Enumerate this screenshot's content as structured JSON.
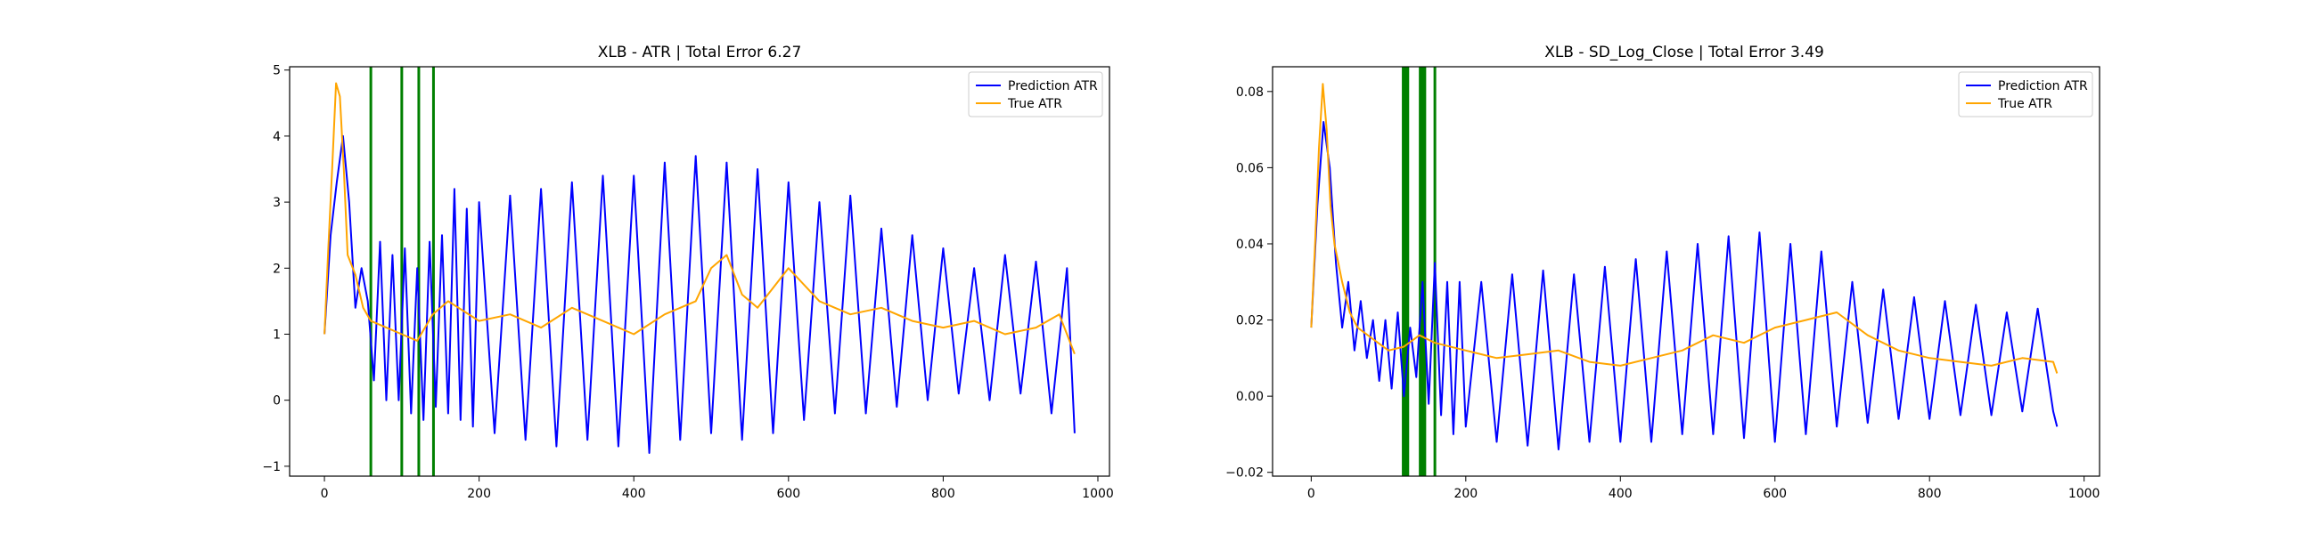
{
  "chart_data": [
    {
      "type": "line",
      "title": "XLB - ATR | Total Error 6.27",
      "xlabel": "",
      "ylabel": "",
      "xlim": [
        -45,
        1015
      ],
      "ylim": [
        -1.15,
        5.05
      ],
      "xticks": [
        0,
        200,
        400,
        600,
        800,
        1000
      ],
      "xtick_labels": [
        "0",
        "200",
        "400",
        "600",
        "800",
        "1000"
      ],
      "yticks": [
        -1,
        0,
        1,
        2,
        3,
        4,
        5
      ],
      "ytick_labels": [
        "−1",
        "0",
        "1",
        "2",
        "3",
        "4",
        "5"
      ],
      "grid": false,
      "legend_position": "top-right",
      "vertical_lines": [
        60,
        100,
        122,
        141
      ],
      "vertical_line_color": "#008000",
      "series": [
        {
          "name": "Prediction ATR",
          "color": "#0000ff",
          "x": [
            0,
            8,
            16,
            24,
            32,
            40,
            48,
            56,
            64,
            72,
            80,
            88,
            96,
            104,
            112,
            120,
            128,
            136,
            144,
            152,
            160,
            168,
            176,
            184,
            192,
            200,
            220,
            240,
            260,
            280,
            300,
            320,
            340,
            360,
            380,
            400,
            420,
            440,
            460,
            480,
            500,
            520,
            540,
            560,
            580,
            600,
            620,
            640,
            660,
            680,
            700,
            720,
            740,
            760,
            780,
            800,
            820,
            840,
            860,
            880,
            900,
            920,
            940,
            960,
            970
          ],
          "y": [
            1.0,
            2.5,
            3.3,
            4.0,
            3.0,
            1.4,
            2.0,
            1.5,
            0.3,
            2.4,
            0.0,
            2.2,
            0.0,
            2.3,
            -0.2,
            2.0,
            -0.3,
            2.4,
            -0.1,
            2.5,
            -0.2,
            3.2,
            -0.3,
            2.9,
            -0.4,
            3.0,
            -0.5,
            3.1,
            -0.6,
            3.2,
            -0.7,
            3.3,
            -0.6,
            3.4,
            -0.7,
            3.4,
            -0.8,
            3.6,
            -0.6,
            3.7,
            -0.5,
            3.6,
            -0.6,
            3.5,
            -0.5,
            3.3,
            -0.3,
            3.0,
            -0.2,
            3.1,
            -0.2,
            2.6,
            -0.1,
            2.5,
            0.0,
            2.3,
            0.1,
            2.0,
            0.0,
            2.2,
            0.1,
            2.1,
            -0.2,
            2.0,
            -0.5
          ]
        },
        {
          "name": "True ATR",
          "color": "#ffa500",
          "x": [
            0,
            5,
            10,
            15,
            20,
            25,
            30,
            40,
            50,
            60,
            80,
            100,
            120,
            140,
            160,
            200,
            240,
            280,
            320,
            360,
            400,
            440,
            480,
            500,
            520,
            540,
            560,
            580,
            600,
            640,
            680,
            720,
            760,
            800,
            840,
            880,
            920,
            950,
            970
          ],
          "y": [
            1.0,
            2.3,
            3.5,
            4.8,
            4.6,
            3.5,
            2.2,
            1.9,
            1.4,
            1.2,
            1.1,
            1.0,
            0.9,
            1.3,
            1.5,
            1.2,
            1.3,
            1.1,
            1.4,
            1.2,
            1.0,
            1.3,
            1.5,
            2.0,
            2.2,
            1.6,
            1.4,
            1.7,
            2.0,
            1.5,
            1.3,
            1.4,
            1.2,
            1.1,
            1.2,
            1.0,
            1.1,
            1.3,
            0.7
          ]
        }
      ]
    },
    {
      "type": "line",
      "title": "XLB - SD_Log_Close | Total Error 3.49",
      "xlabel": "",
      "ylabel": "",
      "xlim": [
        -50,
        1020
      ],
      "ylim": [
        -0.021,
        0.0865
      ],
      "xticks": [
        0,
        200,
        400,
        600,
        800,
        1000
      ],
      "xtick_labels": [
        "0",
        "200",
        "400",
        "600",
        "800",
        "1000"
      ],
      "yticks": [
        -0.02,
        0.0,
        0.02,
        0.04,
        0.06,
        0.08
      ],
      "ytick_labels": [
        "−0.02",
        "0.00",
        "0.02",
        "0.04",
        "0.06",
        "0.08"
      ],
      "grid": false,
      "legend_position": "top-right",
      "vertical_lines": [
        119,
        122,
        125,
        141,
        144,
        147,
        160
      ],
      "vertical_line_color": "#008000",
      "series": [
        {
          "name": "Prediction ATR",
          "color": "#0000ff",
          "x": [
            0,
            8,
            16,
            24,
            32,
            40,
            48,
            56,
            64,
            72,
            80,
            88,
            96,
            104,
            112,
            120,
            128,
            136,
            144,
            152,
            160,
            168,
            176,
            184,
            192,
            200,
            220,
            240,
            260,
            280,
            300,
            320,
            340,
            360,
            380,
            400,
            420,
            440,
            460,
            480,
            500,
            520,
            540,
            560,
            580,
            600,
            620,
            640,
            660,
            680,
            700,
            720,
            740,
            760,
            780,
            800,
            820,
            840,
            860,
            880,
            900,
            920,
            940,
            960,
            965
          ],
          "y": [
            0.018,
            0.05,
            0.072,
            0.06,
            0.035,
            0.018,
            0.03,
            0.012,
            0.025,
            0.01,
            0.02,
            0.004,
            0.02,
            0.002,
            0.022,
            0.0,
            0.018,
            0.005,
            0.03,
            -0.002,
            0.035,
            -0.005,
            0.03,
            -0.01,
            0.03,
            -0.008,
            0.03,
            -0.012,
            0.032,
            -0.013,
            0.033,
            -0.014,
            0.032,
            -0.012,
            0.034,
            -0.012,
            0.036,
            -0.012,
            0.038,
            -0.01,
            0.04,
            -0.01,
            0.042,
            -0.011,
            0.043,
            -0.012,
            0.04,
            -0.01,
            0.038,
            -0.008,
            0.03,
            -0.007,
            0.028,
            -0.006,
            0.026,
            -0.006,
            0.025,
            -0.005,
            0.024,
            -0.005,
            0.022,
            -0.004,
            0.023,
            -0.004,
            -0.008
          ]
        },
        {
          "name": "True ATR",
          "color": "#ffa500",
          "x": [
            0,
            5,
            10,
            15,
            20,
            25,
            30,
            40,
            50,
            60,
            80,
            100,
            120,
            140,
            160,
            200,
            240,
            280,
            320,
            360,
            400,
            440,
            480,
            520,
            560,
            600,
            640,
            680,
            720,
            760,
            800,
            840,
            880,
            920,
            960,
            965
          ],
          "y": [
            0.018,
            0.04,
            0.065,
            0.082,
            0.07,
            0.05,
            0.04,
            0.03,
            0.022,
            0.018,
            0.015,
            0.012,
            0.013,
            0.016,
            0.014,
            0.012,
            0.01,
            0.011,
            0.012,
            0.009,
            0.008,
            0.01,
            0.012,
            0.016,
            0.014,
            0.018,
            0.02,
            0.022,
            0.016,
            0.012,
            0.01,
            0.009,
            0.008,
            0.01,
            0.009,
            0.006
          ]
        }
      ]
    }
  ]
}
